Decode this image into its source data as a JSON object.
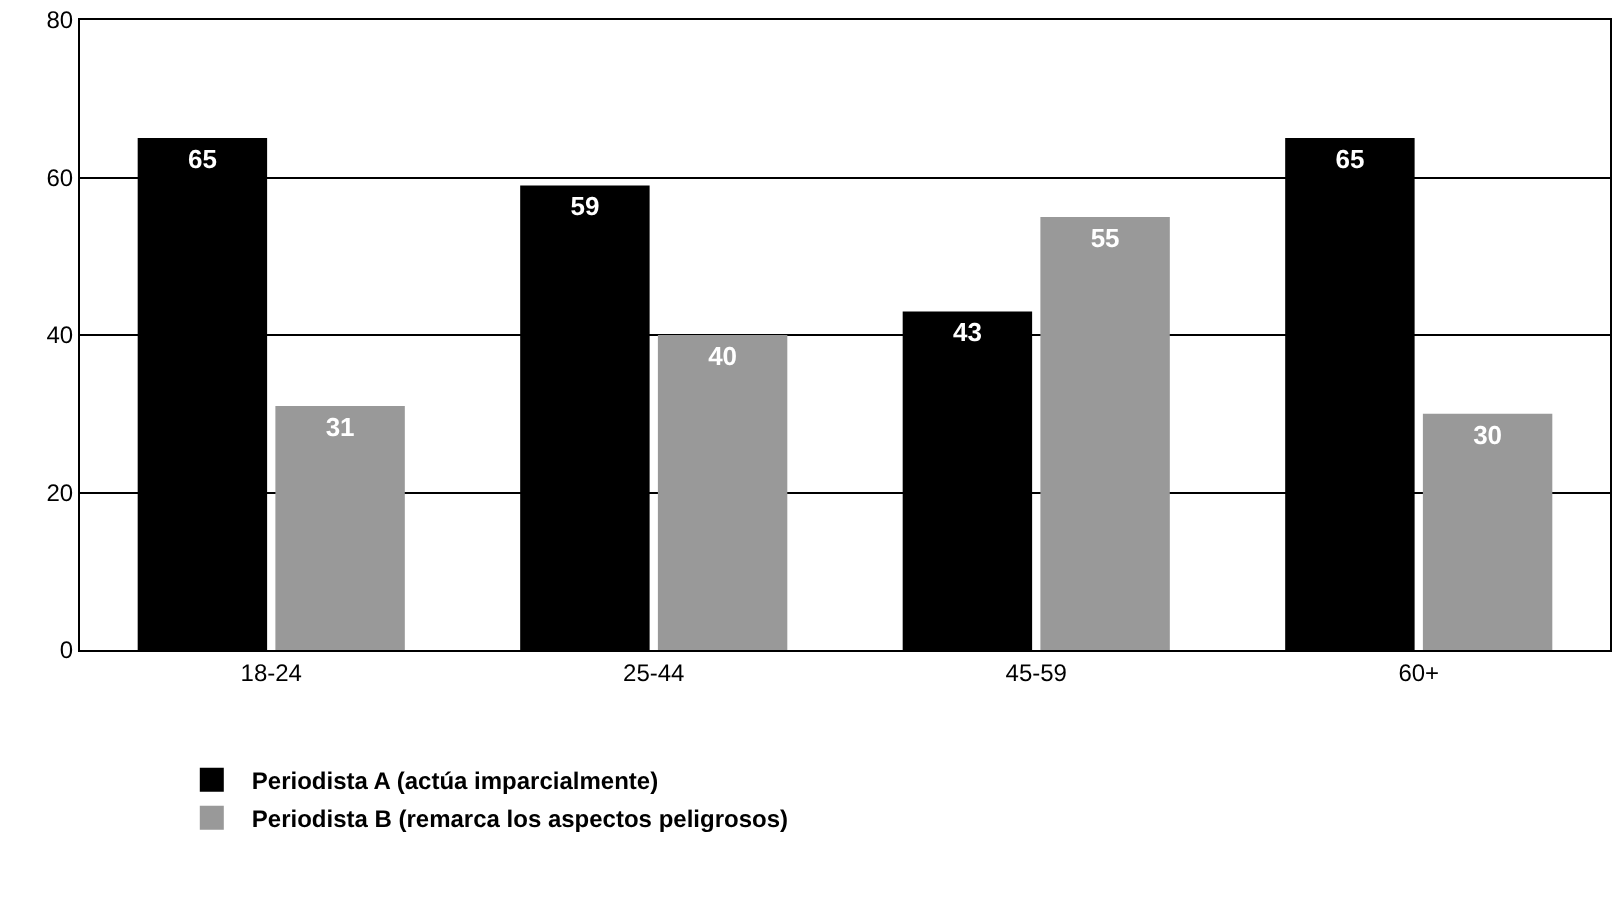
{
  "chart_data": {
    "type": "bar",
    "categories": [
      "18-24",
      "25-44",
      "45-59",
      "60+"
    ],
    "series": [
      {
        "name": "Periodista A (actúa imparcialmente)",
        "color": "#000000",
        "values": [
          65,
          59,
          43,
          65
        ]
      },
      {
        "name": "Periodista B (remarca los aspectos peligrosos)",
        "color": "#999999",
        "values": [
          31,
          40,
          55,
          30
        ]
      }
    ],
    "ylim": [
      0,
      80
    ],
    "yticks": [
      0,
      20,
      40,
      60,
      80
    ],
    "grid": "y",
    "legend": "bottom left",
    "data_labels": true
  }
}
